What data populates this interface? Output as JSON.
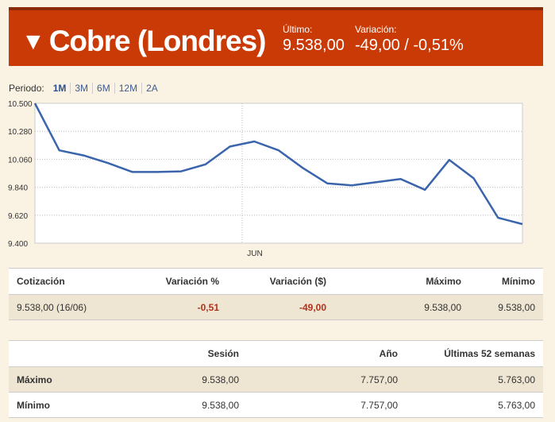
{
  "header": {
    "arrow": "▼",
    "title": "Cobre (Londres)",
    "last_label": "Último:",
    "last_value": "9.538,00",
    "change_label": "Variación:",
    "change_value": "-49,00 / -0,51%"
  },
  "periods": {
    "label": "Periodo:",
    "items": [
      "1M",
      "3M",
      "6M",
      "12M",
      "2A"
    ],
    "active": "1M"
  },
  "chart_data": {
    "type": "line",
    "x_tick_label": "JUN",
    "ylim": [
      9400,
      10500
    ],
    "y_ticks": [
      "10.500",
      "10.280",
      "10.060",
      "9.840",
      "9.620",
      "9.400"
    ],
    "values": [
      10500,
      10130,
      10090,
      10030,
      9960,
      9960,
      9965,
      10020,
      10160,
      10200,
      10130,
      9990,
      9870,
      9855,
      9880,
      9905,
      9820,
      10055,
      9910,
      9600,
      9550
    ],
    "line_color": "#3a64ac",
    "grid": true
  },
  "quote_table": {
    "headers": [
      "Cotización",
      "Variación %",
      "Variación ($)",
      "Máximo",
      "Mínimo"
    ],
    "row": [
      "9.538,00 (16/06)",
      "-0,51",
      "-49,00",
      "9.538,00",
      "9.538,00"
    ]
  },
  "range_table": {
    "headers": [
      "",
      "Sesión",
      "Año",
      "Últimas 52 semanas"
    ],
    "rows": [
      [
        "Máximo",
        "9.538,00",
        "7.757,00",
        "5.763,00"
      ],
      [
        "Mínimo",
        "9.538,00",
        "7.757,00",
        "5.763,00"
      ]
    ]
  }
}
